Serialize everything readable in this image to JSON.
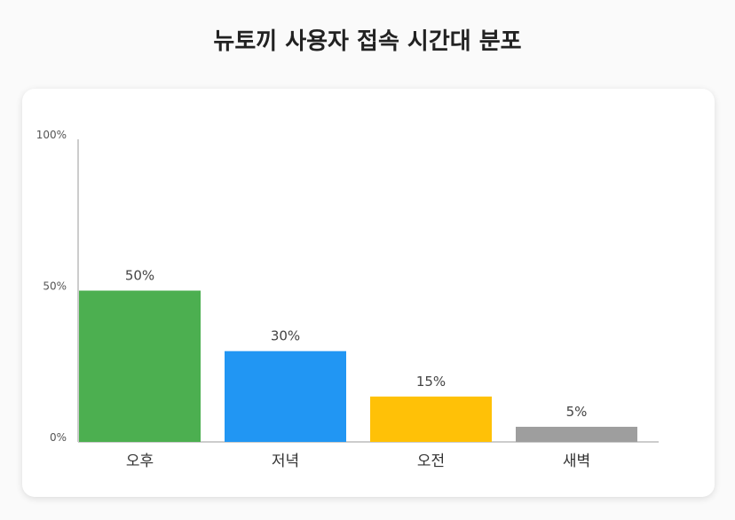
{
  "title": "뉴토끼 사용자 접속 시간대 분포",
  "chart_data": {
    "type": "bar",
    "title": "뉴토끼 사용자 접속 시간대 분포",
    "categories": [
      "오후",
      "저녁",
      "오전",
      "새벽"
    ],
    "values": [
      50,
      30,
      15,
      5
    ],
    "value_labels": [
      "50%",
      "30%",
      "15%",
      "5%"
    ],
    "colors": [
      "#4caf50",
      "#2196f3",
      "#ffc107",
      "#9e9e9e"
    ],
    "yticks": [
      0,
      50,
      100
    ],
    "ytick_labels": [
      "0%",
      "50%",
      "100%"
    ],
    "ylim": [
      0,
      100
    ],
    "xlabel": "",
    "ylabel": "",
    "grid": false
  }
}
